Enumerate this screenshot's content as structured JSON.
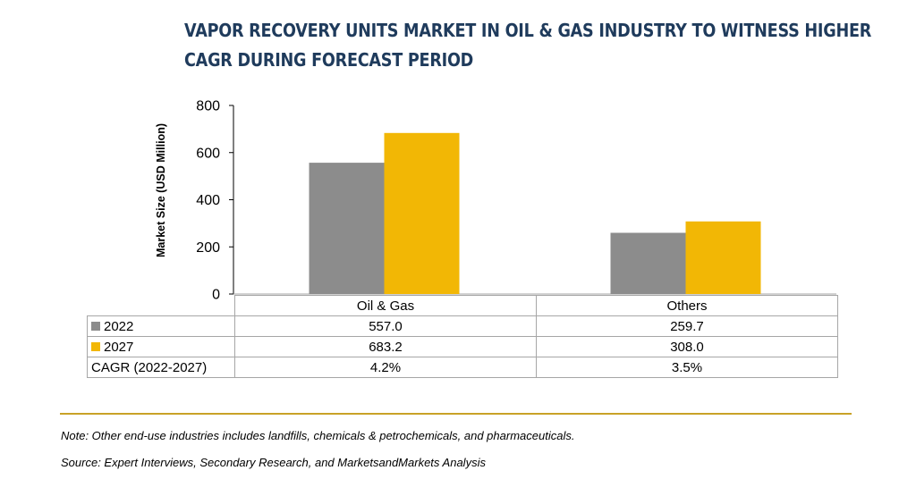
{
  "title_line1": "VAPOR RECOVERY UNITS MARKET IN OIL & GAS INDUSTRY TO WITNESS HIGHER",
  "title_line2": "CAGR DURING FORECAST PERIOD",
  "chart_data": {
    "type": "bar",
    "title": "VAPOR RECOVERY UNITS MARKET IN OIL & GAS INDUSTRY TO WITNESS HIGHER CAGR DURING FORECAST PERIOD",
    "categories": [
      "Oil & Gas",
      "Others"
    ],
    "series": [
      {
        "name": "2022",
        "values": [
          557.0,
          259.7
        ],
        "color": "#8c8c8c"
      },
      {
        "name": "2027",
        "values": [
          683.2,
          308.0
        ],
        "color": "#f2b705"
      }
    ],
    "ylabel": "Market Size (USD Million)",
    "xlabel": "",
    "ylim": [
      0,
      800
    ],
    "yticks": [
      0,
      200,
      400,
      600,
      800
    ],
    "grid": false,
    "legend": "data table"
  },
  "table": {
    "rows": [
      {
        "label": "2022",
        "values": [
          "557.0",
          "259.7"
        ],
        "swatch": "#8c8c8c"
      },
      {
        "label": "2027",
        "values": [
          "683.2",
          "308.0"
        ],
        "swatch": "#f2b705"
      },
      {
        "label": "CAGR (2022-2027)",
        "values": [
          "4.2%",
          "3.5%"
        ]
      }
    ]
  },
  "note": "Note: Other end-use industries includes landfills, chemicals & petrochemicals, and pharmaceuticals.",
  "source": "Source: Expert Interviews, Secondary Research, and MarketsandMarkets Analysis"
}
